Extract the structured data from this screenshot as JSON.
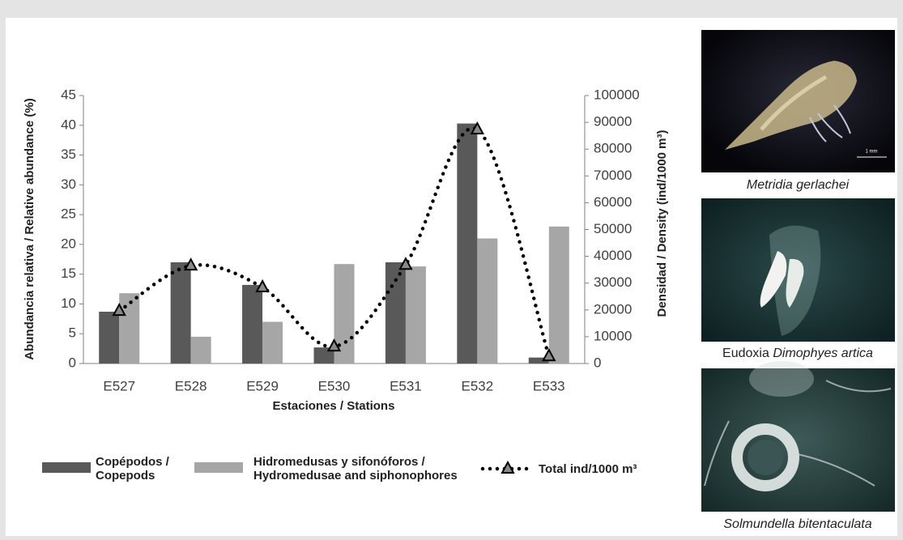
{
  "chart_data": {
    "type": "bar",
    "y_label": "Abundancia relativa / Relative abundance (%)",
    "y2_label": "Densidad / Density (ind/1000 m³)",
    "x_label": "Estaciones / Stations",
    "categories": [
      "E527",
      "E528",
      "E529",
      "E530",
      "E531",
      "E532",
      "E533"
    ],
    "series": [
      {
        "name": "Copépodos / Copepods",
        "color": "#595959",
        "values": [
          8.7,
          17,
          13.2,
          2.7,
          17,
          40.3,
          1.0
        ]
      },
      {
        "name": "Hidromedusas y sifonóforos / Hydromedusae and siphonophores",
        "color": "#a6a6a6",
        "values": [
          11.8,
          4.5,
          7,
          16.7,
          16.3,
          21,
          23
        ]
      },
      {
        "name": "Total ind/1000 m³",
        "type": "line",
        "axis": "y2",
        "color": "#000000",
        "values": [
          19600,
          36500,
          28400,
          6300,
          36800,
          87300,
          2700
        ]
      }
    ],
    "ylim": [
      0,
      45
    ],
    "yticks": [
      0,
      5,
      10,
      15,
      20,
      25,
      30,
      35,
      40,
      45
    ],
    "y2lim": [
      0,
      100000
    ],
    "y2ticks": [
      0,
      10000,
      20000,
      30000,
      40000,
      50000,
      60000,
      70000,
      80000,
      90000,
      100000
    ]
  },
  "images": [
    {
      "caption": "Metridia gerlachei",
      "scale_label": "1 mm"
    },
    {
      "caption_parts": [
        "Eudoxia",
        "Dimophyes artica"
      ]
    },
    {
      "caption": "Solmundella bitentaculata"
    }
  ]
}
